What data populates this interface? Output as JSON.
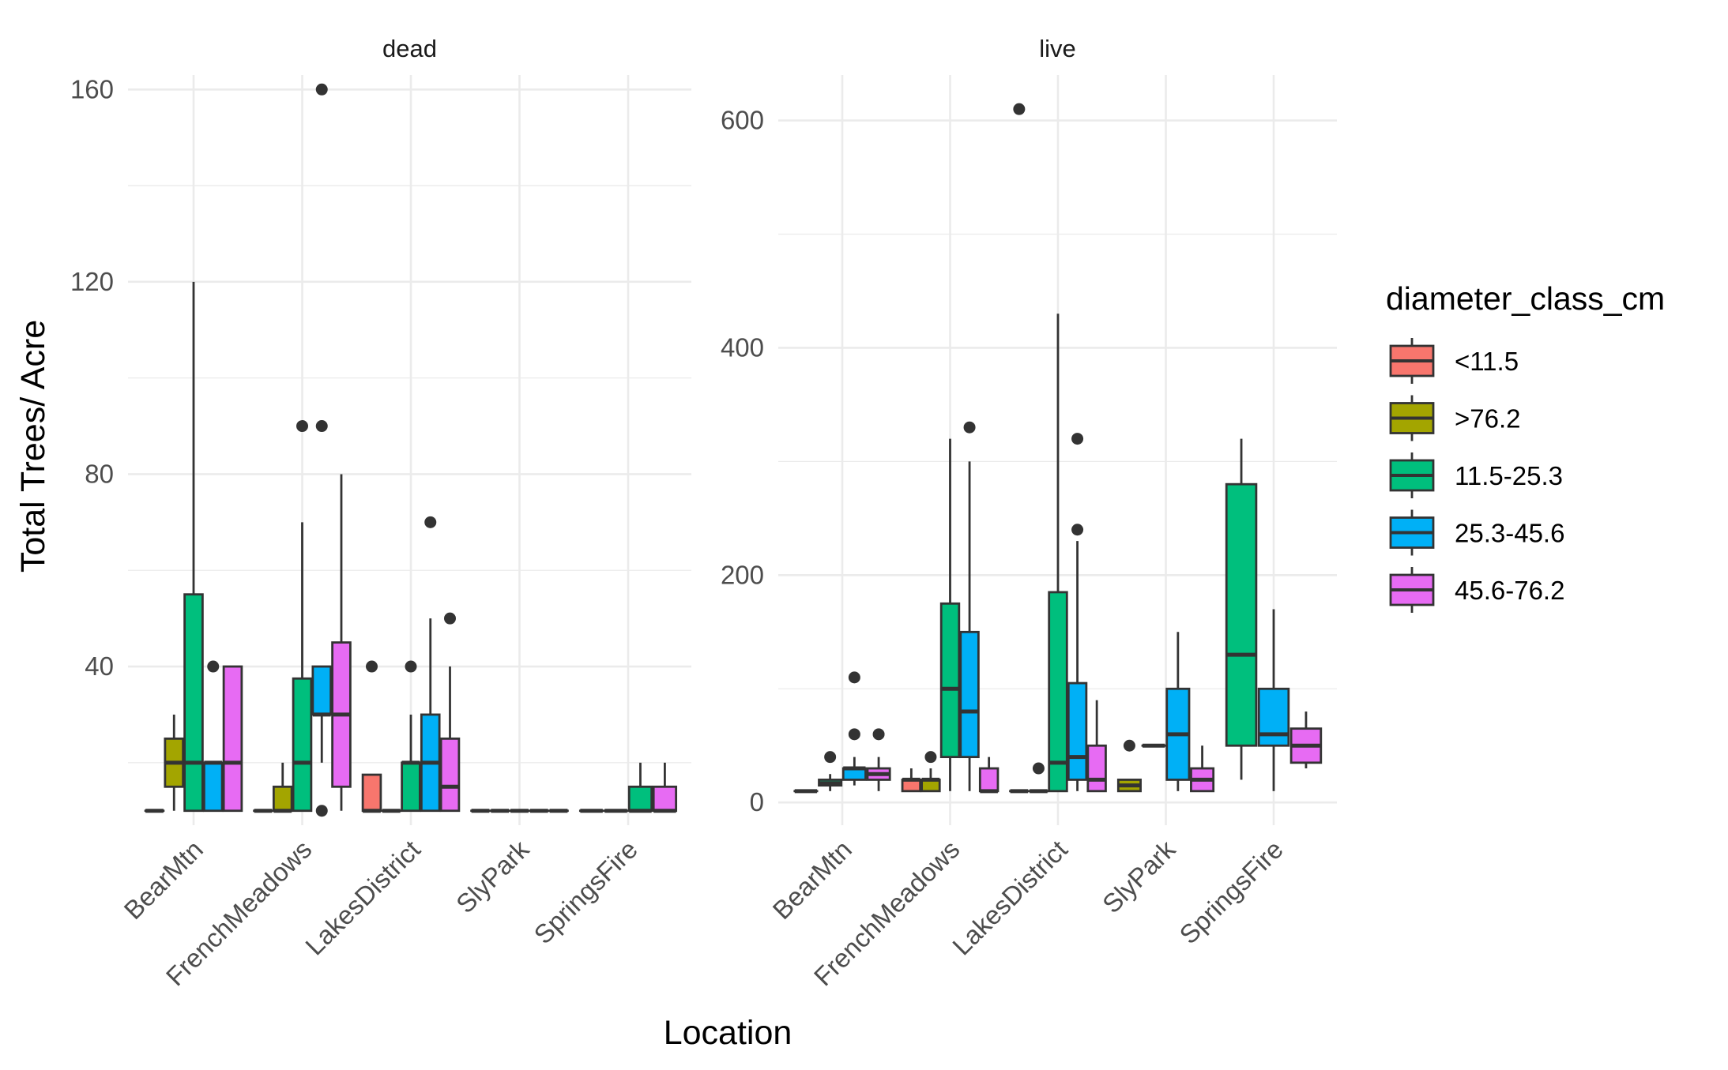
{
  "chart_data": {
    "type": "boxplot",
    "xlabel": "Location",
    "ylabel": "Total Trees/ Acre",
    "categories": [
      "BearMtn",
      "FrenchMeadows",
      "LakesDistrict",
      "SlyPark",
      "SpringsFire"
    ],
    "legend": {
      "title": "diameter_class_cm",
      "position": "right",
      "entries": [
        {
          "name": "<11.5",
          "color": "#F8766D"
        },
        {
          "name": ">76.2",
          "color": "#A3A500"
        },
        {
          "name": "11.5-25.3",
          "color": "#00BF7D"
        },
        {
          "name": "25.3-45.6",
          "color": "#00B0F6"
        },
        {
          "name": "45.6-76.2",
          "color": "#E76BF3"
        }
      ]
    },
    "grid": true,
    "panels": [
      {
        "strip": "dead",
        "ylim": [
          7,
          163
        ],
        "yticks": [
          40,
          80,
          120,
          160
        ],
        "ytick_labels": [
          "40",
          "80",
          "120",
          "160"
        ],
        "groups": [
          {
            "location": "BearMtn",
            "boxes": [
              {
                "class": "<11.5",
                "slot": 0,
                "min": 10,
                "q1": 10,
                "median": 10,
                "q3": 10,
                "max": 10,
                "outliers": []
              },
              {
                "class": ">76.2",
                "slot": 1,
                "min": 10,
                "q1": 15,
                "median": 20,
                "q3": 25,
                "max": 30,
                "outliers": []
              },
              {
                "class": "11.5-25.3",
                "slot": 2,
                "min": 10,
                "q1": 10,
                "median": 20,
                "q3": 55,
                "max": 120,
                "outliers": []
              },
              {
                "class": "25.3-45.6",
                "slot": 3,
                "min": 10,
                "q1": 10,
                "median": 20,
                "q3": 20,
                "max": 20,
                "outliers": [
                  40
                ]
              },
              {
                "class": "45.6-76.2",
                "slot": 4,
                "min": 10,
                "q1": 10,
                "median": 20,
                "q3": 40,
                "max": 40,
                "outliers": []
              }
            ]
          },
          {
            "location": "FrenchMeadows",
            "boxes": [
              {
                "class": "<11.5",
                "slot": 0,
                "min": 10,
                "q1": 10,
                "median": 10,
                "q3": 10,
                "max": 10,
                "outliers": []
              },
              {
                "class": ">76.2",
                "slot": 1,
                "min": 10,
                "q1": 10,
                "median": 10,
                "q3": 15,
                "max": 20,
                "outliers": []
              },
              {
                "class": "11.5-25.3",
                "slot": 2,
                "min": 10,
                "q1": 10,
                "median": 20,
                "q3": 37.5,
                "max": 70,
                "outliers": [
                  90
                ]
              },
              {
                "class": "25.3-45.6",
                "slot": 3,
                "min": 20,
                "q1": 30,
                "median": 30,
                "q3": 40,
                "max": 40,
                "outliers": [
                  90,
                  160,
                  10
                ]
              },
              {
                "class": "45.6-76.2",
                "slot": 4,
                "min": 10,
                "q1": 15,
                "median": 30,
                "q3": 45,
                "max": 80,
                "outliers": []
              }
            ]
          },
          {
            "location": "LakesDistrict",
            "boxes": [
              {
                "class": "<11.5",
                "slot": 0,
                "min": 10,
                "q1": 10,
                "median": 10,
                "q3": 17.5,
                "max": 17.5,
                "outliers": [
                  40
                ]
              },
              {
                "class": ">76.2",
                "slot": 1,
                "min": 10,
                "q1": 10,
                "median": 10,
                "q3": 10,
                "max": 10,
                "outliers": []
              },
              {
                "class": "11.5-25.3",
                "slot": 2,
                "min": 10,
                "q1": 10,
                "median": 20,
                "q3": 20,
                "max": 30,
                "outliers": [
                  40
                ]
              },
              {
                "class": "25.3-45.6",
                "slot": 3,
                "min": 10,
                "q1": 10,
                "median": 20,
                "q3": 30,
                "max": 50,
                "outliers": [
                  70
                ]
              },
              {
                "class": "45.6-76.2",
                "slot": 4,
                "min": 10,
                "q1": 10,
                "median": 15,
                "q3": 25,
                "max": 40,
                "outliers": [
                  50
                ]
              }
            ]
          },
          {
            "location": "SlyPark",
            "boxes": [
              {
                "class": "<11.5",
                "slot": 0,
                "min": 10,
                "q1": 10,
                "median": 10,
                "q3": 10,
                "max": 10,
                "outliers": []
              },
              {
                "class": ">76.2",
                "slot": 1,
                "min": 10,
                "q1": 10,
                "median": 10,
                "q3": 10,
                "max": 10,
                "outliers": []
              },
              {
                "class": "11.5-25.3",
                "slot": 2,
                "min": 10,
                "q1": 10,
                "median": 10,
                "q3": 10,
                "max": 10,
                "outliers": []
              },
              {
                "class": "25.3-45.6",
                "slot": 3,
                "min": 10,
                "q1": 10,
                "median": 10,
                "q3": 10,
                "max": 10,
                "outliers": []
              },
              {
                "class": "45.6-76.2",
                "slot": 4,
                "min": 10,
                "q1": 10,
                "median": 10,
                "q3": 10,
                "max": 10,
                "outliers": []
              }
            ]
          },
          {
            "location": "SpringsFire",
            "boxes": [
              {
                "class": "<11.5",
                "slot": 0,
                "min": 10,
                "q1": 10,
                "median": 10,
                "q3": 10,
                "max": 10,
                "outliers": []
              },
              {
                "class": ">76.2",
                "slot": 1,
                "min": 10,
                "q1": 10,
                "median": 10,
                "q3": 10,
                "max": 10,
                "outliers": []
              },
              {
                "class": "11.5-25.3",
                "slot": 2,
                "min": 10,
                "q1": 10,
                "median": 10,
                "q3": 15,
                "max": 20,
                "outliers": []
              },
              {
                "class": "45.6-76.2",
                "slot": 3,
                "min": 10,
                "q1": 10,
                "median": 10,
                "q3": 15,
                "max": 20,
                "outliers": []
              }
            ]
          }
        ]
      },
      {
        "strip": "live",
        "ylim": [
          -20,
          640
        ],
        "yticks": [
          0,
          200,
          400,
          600
        ],
        "ytick_labels": [
          "0",
          "200",
          "400",
          "600"
        ],
        "groups": [
          {
            "location": "BearMtn",
            "boxes": [
              {
                "class": "<11.5",
                "slot": 0,
                "min": 10,
                "q1": 10,
                "median": 10,
                "q3": 10,
                "max": 10,
                "outliers": []
              },
              {
                "class": "11.5-25.3",
                "slot": 1,
                "min": 10,
                "q1": 15,
                "median": 17,
                "q3": 20,
                "max": 25,
                "outliers": [
                  40
                ]
              },
              {
                "class": "25.3-45.6",
                "slot": 2,
                "min": 15,
                "q1": 20,
                "median": 30,
                "q3": 30,
                "max": 40,
                "outliers": [
                  110,
                  60
                ]
              },
              {
                "class": "45.6-76.2",
                "slot": 3,
                "min": 10,
                "q1": 20,
                "median": 25,
                "q3": 30,
                "max": 40,
                "outliers": [
                  60
                ]
              }
            ]
          },
          {
            "location": "FrenchMeadows",
            "boxes": [
              {
                "class": "<11.5",
                "slot": 0,
                "min": 10,
                "q1": 10,
                "median": 20,
                "q3": 20,
                "max": 30,
                "outliers": []
              },
              {
                "class": ">76.2",
                "slot": 1,
                "min": 10,
                "q1": 10,
                "median": 20,
                "q3": 20,
                "max": 30,
                "outliers": [
                  40
                ]
              },
              {
                "class": "11.5-25.3",
                "slot": 2,
                "min": 10,
                "q1": 40,
                "median": 100,
                "q3": 175,
                "max": 320,
                "outliers": []
              },
              {
                "class": "25.3-45.6",
                "slot": 3,
                "min": 10,
                "q1": 40,
                "median": 80,
                "q3": 150,
                "max": 300,
                "outliers": [
                  330
                ]
              },
              {
                "class": "45.6-76.2",
                "slot": 4,
                "min": 10,
                "q1": 10,
                "median": 10,
                "q3": 30,
                "max": 40,
                "outliers": []
              }
            ]
          },
          {
            "location": "LakesDistrict",
            "boxes": [
              {
                "class": "<11.5",
                "slot": 0,
                "min": 10,
                "q1": 10,
                "median": 10,
                "q3": 10,
                "max": 10,
                "outliers": [
                  610
                ]
              },
              {
                "class": ">76.2",
                "slot": 1,
                "min": 10,
                "q1": 10,
                "median": 10,
                "q3": 10,
                "max": 10,
                "outliers": [
                  30
                ]
              },
              {
                "class": "11.5-25.3",
                "slot": 2,
                "min": 10,
                "q1": 10,
                "median": 35,
                "q3": 185,
                "max": 430,
                "outliers": []
              },
              {
                "class": "25.3-45.6",
                "slot": 3,
                "min": 10,
                "q1": 20,
                "median": 40,
                "q3": 105,
                "max": 230,
                "outliers": [
                  320,
                  240
                ]
              },
              {
                "class": "45.6-76.2",
                "slot": 4,
                "min": 10,
                "q1": 10,
                "median": 20,
                "q3": 50,
                "max": 90,
                "outliers": []
              }
            ]
          },
          {
            "location": "SlyPark",
            "boxes": [
              {
                "class": ">76.2",
                "slot": 0,
                "min": 10,
                "q1": 10,
                "median": 15,
                "q3": 20,
                "max": 20,
                "outliers": [
                  50
                ]
              },
              {
                "class": "11.5-25.3",
                "slot": 1,
                "min": 50,
                "q1": 50,
                "median": 50,
                "q3": 50,
                "max": 50,
                "outliers": []
              },
              {
                "class": "25.3-45.6",
                "slot": 2,
                "min": 10,
                "q1": 20,
                "median": 60,
                "q3": 100,
                "max": 150,
                "outliers": []
              },
              {
                "class": "45.6-76.2",
                "slot": 3,
                "min": 10,
                "q1": 10,
                "median": 20,
                "q3": 30,
                "max": 50,
                "outliers": []
              }
            ]
          },
          {
            "location": "SpringsFire",
            "boxes": [
              {
                "class": "11.5-25.3",
                "slot": 0,
                "min": 20,
                "q1": 50,
                "median": 130,
                "q3": 280,
                "max": 320,
                "outliers": []
              },
              {
                "class": "25.3-45.6",
                "slot": 1,
                "min": 10,
                "q1": 50,
                "median": 60,
                "q3": 100,
                "max": 170,
                "outliers": []
              },
              {
                "class": "45.6-76.2",
                "slot": 2,
                "min": 30,
                "q1": 35,
                "median": 50,
                "q3": 65,
                "max": 80,
                "outliers": []
              }
            ]
          }
        ]
      }
    ]
  }
}
